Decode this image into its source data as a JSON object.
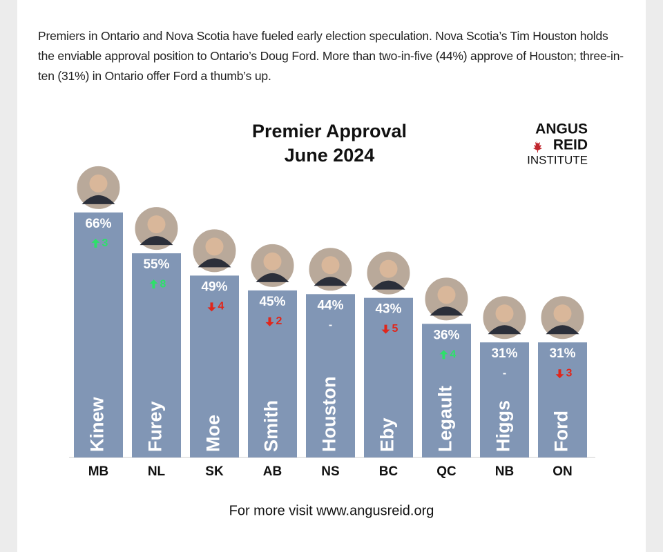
{
  "intro": "Premiers in Ontario and Nova Scotia have fueled early election speculation. Nova Scotia’s Tim Houston holds the enviable approval position to Ontario’s Doug Ford. More than two-in-five (44%) approve of Houston; three-in-ten (31%) in Ontario offer Ford a thumb’s up.",
  "chart_data": {
    "type": "bar",
    "title": "Premier Approval",
    "subtitle": "June 2024",
    "logo": [
      "ANGUS",
      "REID",
      "INSTITUTE"
    ],
    "footer": "For more visit www.angusreid.org",
    "categories": [
      "MB",
      "NL",
      "SK",
      "AB",
      "NS",
      "BC",
      "QC",
      "NB",
      "ON"
    ],
    "names": [
      "Kinew",
      "Furey",
      "Moe",
      "Smith",
      "Houston",
      "Eby",
      "Legault",
      "Higgs",
      "Ford"
    ],
    "values": [
      66,
      55,
      49,
      45,
      44,
      43,
      36,
      31,
      31
    ],
    "value_labels": [
      "66%",
      "55%",
      "49%",
      "45%",
      "44%",
      "43%",
      "36%",
      "31%",
      "31%"
    ],
    "changes": [
      3,
      8,
      -4,
      -2,
      0,
      -5,
      4,
      0,
      -3
    ],
    "change_labels": [
      "3",
      "8",
      "4",
      "2",
      "-",
      "5",
      "4",
      "-",
      "3"
    ],
    "color": "#8196b5",
    "up_color": "#2ee06a",
    "down_color": "#e0261b"
  }
}
